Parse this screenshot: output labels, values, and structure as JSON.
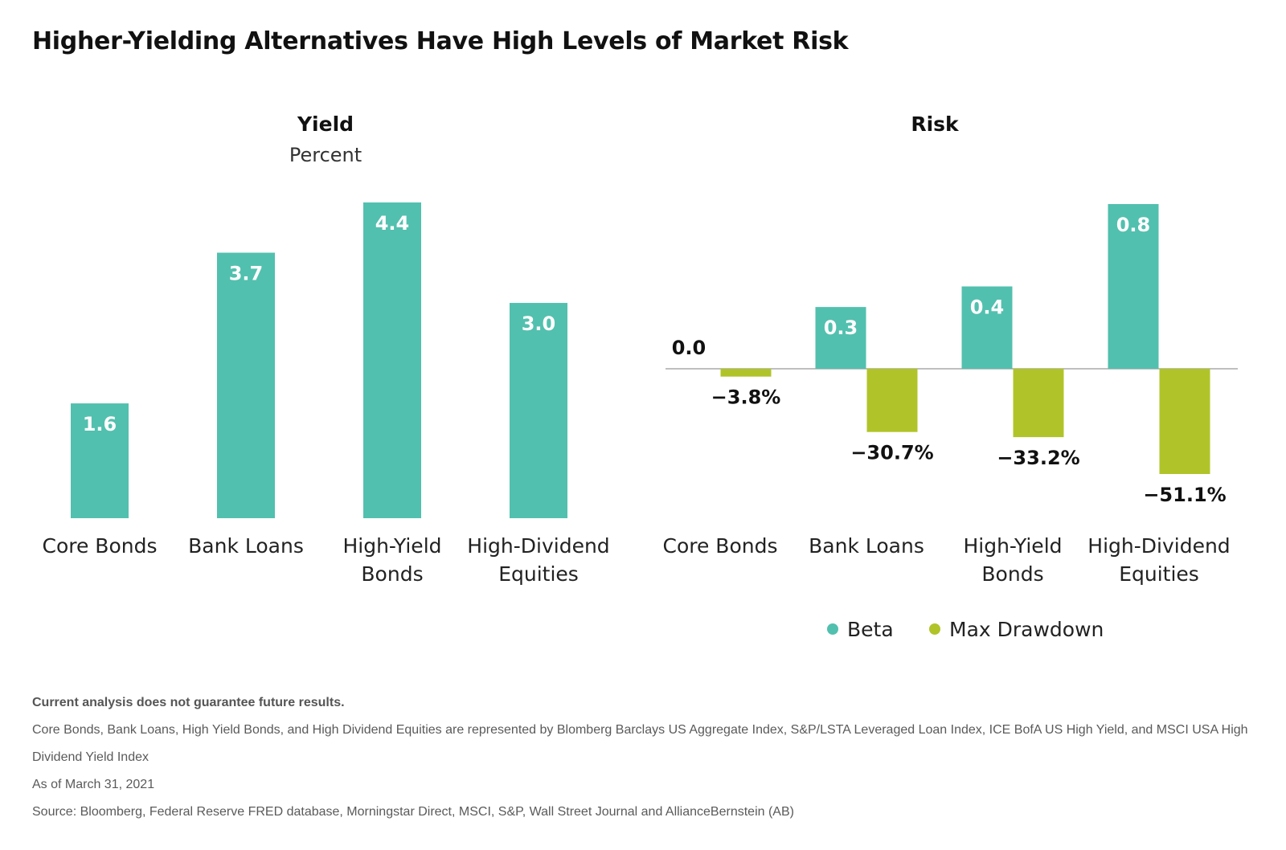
{
  "title": "Higher-Yielding Alternatives Have High Levels of Market Risk",
  "colors": {
    "teal": "#52c0ae",
    "green": "#b0c429",
    "axis": "#bfbfbf"
  },
  "chart_data": [
    {
      "type": "bar",
      "title": "Yield",
      "subtitle": "Percent",
      "categories": [
        [
          "Core Bonds"
        ],
        [
          "Bank Loans"
        ],
        [
          "High-Yield",
          "Bonds"
        ],
        [
          "High-Dividend",
          "Equities"
        ]
      ],
      "series": [
        {
          "values": [
            1.6,
            3.7,
            4.4,
            3.0
          ],
          "labels": [
            "1.6",
            "3.7",
            "4.4",
            "3.0"
          ],
          "color": "#52c0ae"
        }
      ],
      "ylim": [
        0,
        4.4
      ]
    },
    {
      "type": "bar",
      "title": "Risk",
      "categories": [
        [
          "Core Bonds"
        ],
        [
          "Bank Loans"
        ],
        [
          "High-Yield",
          "Bonds"
        ],
        [
          "High-Dividend",
          "Equities"
        ]
      ],
      "series": [
        {
          "name": "Beta",
          "values": [
            0.0,
            0.3,
            0.4,
            0.8
          ],
          "labels": [
            "0.0",
            "0.3",
            "0.4",
            "0.8"
          ],
          "color": "#52c0ae"
        },
        {
          "name": "Max Drawdown",
          "values": [
            -3.8,
            -30.7,
            -33.2,
            -51.1
          ],
          "labels": [
            "−3.8%",
            "−30.7%",
            "−33.2%",
            "−51.1%"
          ],
          "color": "#b0c429"
        }
      ],
      "legend": "bottom"
    }
  ],
  "footer": {
    "disclaimer": "Current analysis does not guarantee future results.",
    "note": "Core Bonds, Bank Loans, High Yield Bonds, and High Dividend Equities are represented by Blomberg Barclays US Aggregate Index, S&P/LSTA Leveraged Loan Index, ICE BofA US High Yield, and MSCI USA High Dividend Yield Index",
    "date": "As of March 31, 2021",
    "source": "Source: Bloomberg, Federal Reserve FRED database, Morningstar Direct, MSCI, S&P, Wall Street Journal and AllianceBernstein (AB)"
  }
}
